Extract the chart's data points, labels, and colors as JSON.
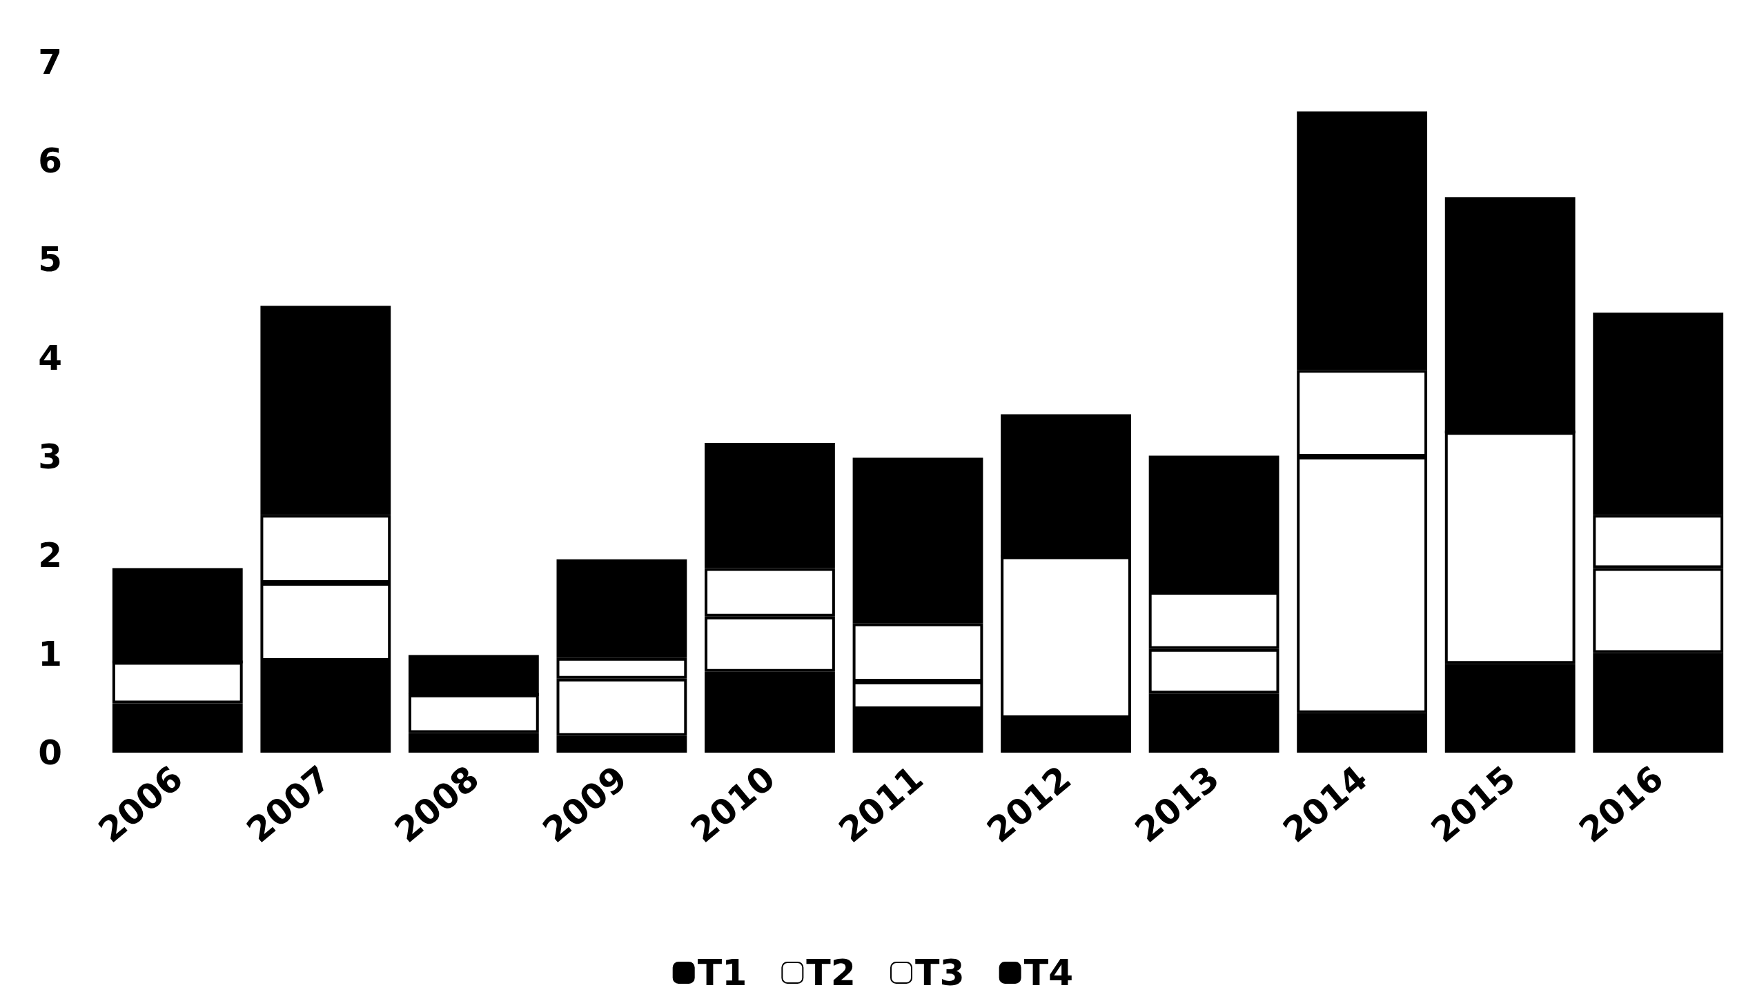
{
  "chart_data": {
    "type": "bar",
    "stacked": true,
    "categories": [
      "2006",
      "2007",
      "2008",
      "2009",
      "2010",
      "2011",
      "2012",
      "2013",
      "2014",
      "2015",
      "2016"
    ],
    "series": [
      {
        "name": "T1",
        "color": "#000000",
        "values": [
          0.5,
          0.93,
          0.2,
          0.17,
          0.82,
          0.44,
          0.35,
          0.6,
          0.4,
          0.9,
          1.01
        ]
      },
      {
        "name": "T2",
        "color": "#ffffff",
        "values": [
          0.42,
          0.79,
          0.39,
          0.58,
          0.56,
          0.28,
          1.64,
          0.45,
          2.6,
          2.35,
          0.86
        ]
      },
      {
        "name": "T3",
        "color": "#ffffff",
        "values": [
          0,
          0.69,
          0,
          0.21,
          0.49,
          0.59,
          0,
          0.58,
          0.88,
          0,
          0.54
        ]
      },
      {
        "name": "T4",
        "color": "#000000",
        "values": [
          0.95,
          2.12,
          0.4,
          1.0,
          1.27,
          1.68,
          1.44,
          1.38,
          2.62,
          2.38,
          2.05
        ]
      }
    ],
    "ylim": [
      0,
      7
    ],
    "yticks": [
      0,
      1,
      2,
      3,
      4,
      5,
      6,
      7
    ],
    "grid": false,
    "legend": "bottom"
  }
}
